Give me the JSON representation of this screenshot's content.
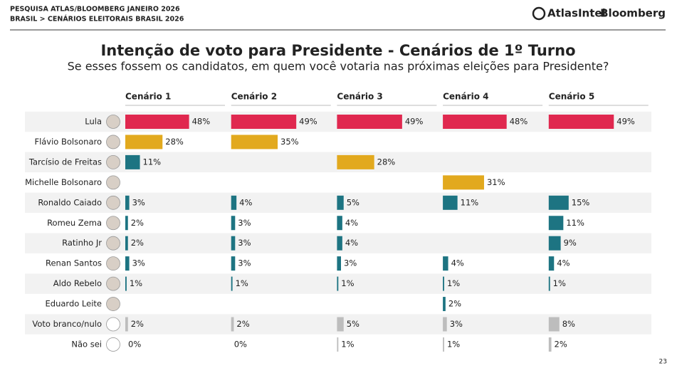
{
  "header": {
    "line1": "PESQUISA ATLAS/BLOOMBERG JANEIRO 2026",
    "line2": "BRASIL > CENÁRIOS ELEITORAIS BRASIL 2026",
    "logo_atlas": "AtlasIntel",
    "logo_bloomberg": "Bloomberg"
  },
  "page_number": "23",
  "chart_data": {
    "type": "bar",
    "orientation": "horizontal",
    "title": "Intenção de voto para Presidente - Cenários de 1º Turno",
    "subtitle": "Se esses fossem os candidatos, em quem você votaria nas próximas eleições para Presidente?",
    "categories": [
      "Lula",
      "Flávio Bolsonaro",
      "Tarcísio de Freitas",
      "Michelle Bolsonaro",
      "Ronaldo Caiado",
      "Romeu Zema",
      "Ratinho Jr",
      "Renan Santos",
      "Aldo Rebelo",
      "Eduardo Leite",
      "Voto branco/nulo",
      "Não sei"
    ],
    "xlim": [
      0,
      75
    ],
    "series": [
      {
        "name": "Cenário 1",
        "values": [
          48,
          28,
          11,
          null,
          3,
          2,
          2,
          3,
          1,
          null,
          2,
          0
        ],
        "value_labels": [
          "48%",
          "28%",
          "11%",
          null,
          "3%",
          "2%",
          "2%",
          "3%",
          "1%",
          null,
          "2%",
          "0%"
        ],
        "colors": [
          "#e0284f",
          "#e2a91e",
          "#1d7482",
          null,
          "#1d7482",
          "#1d7482",
          "#1d7482",
          "#1d7482",
          "#1d7482",
          null,
          "#bdbdbd",
          "#bdbdbd"
        ]
      },
      {
        "name": "Cenário 2",
        "values": [
          49,
          35,
          null,
          null,
          4,
          3,
          3,
          3,
          1,
          null,
          2,
          0
        ],
        "value_labels": [
          "49%",
          "35%",
          null,
          null,
          "4%",
          "3%",
          "3%",
          "3%",
          "1%",
          null,
          "2%",
          "0%"
        ],
        "colors": [
          "#e0284f",
          "#e2a91e",
          null,
          null,
          "#1d7482",
          "#1d7482",
          "#1d7482",
          "#1d7482",
          "#1d7482",
          null,
          "#bdbdbd",
          "#bdbdbd"
        ]
      },
      {
        "name": "Cenário 3",
        "values": [
          49,
          null,
          28,
          null,
          5,
          4,
          4,
          3,
          1,
          null,
          5,
          1
        ],
        "value_labels": [
          "49%",
          null,
          "28%",
          null,
          "5%",
          "4%",
          "4%",
          "3%",
          "1%",
          null,
          "5%",
          "1%"
        ],
        "colors": [
          "#e0284f",
          null,
          "#e2a91e",
          null,
          "#1d7482",
          "#1d7482",
          "#1d7482",
          "#1d7482",
          "#1d7482",
          null,
          "#bdbdbd",
          "#bdbdbd"
        ]
      },
      {
        "name": "Cenário 4",
        "values": [
          48,
          null,
          null,
          31,
          11,
          null,
          null,
          4,
          1,
          2,
          3,
          1
        ],
        "value_labels": [
          "48%",
          null,
          null,
          "31%",
          "11%",
          null,
          null,
          "4%",
          "1%",
          "2%",
          "3%",
          "1%"
        ],
        "colors": [
          "#e0284f",
          null,
          null,
          "#e2a91e",
          "#1d7482",
          null,
          null,
          "#1d7482",
          "#1d7482",
          "#1d7482",
          "#bdbdbd",
          "#bdbdbd"
        ]
      },
      {
        "name": "Cenário 5",
        "values": [
          49,
          null,
          null,
          null,
          15,
          11,
          9,
          4,
          1,
          null,
          8,
          2
        ],
        "value_labels": [
          "49%",
          null,
          null,
          null,
          "15%",
          "11%",
          "9%",
          "4%",
          "1%",
          null,
          "8%",
          "2%"
        ],
        "colors": [
          "#e0284f",
          null,
          null,
          null,
          "#1d7482",
          "#1d7482",
          "#1d7482",
          "#1d7482",
          "#1d7482",
          null,
          "#bdbdbd",
          "#bdbdbd"
        ]
      }
    ]
  }
}
